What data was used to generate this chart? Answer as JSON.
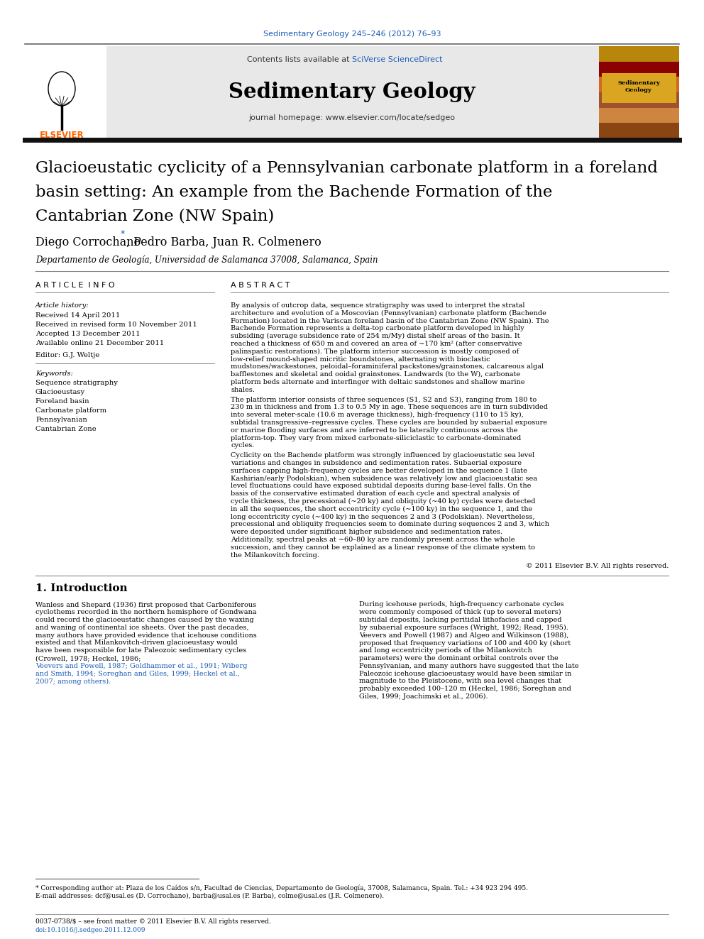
{
  "journal_ref": "Sedimentary Geology 245–246 (2012) 76–93",
  "journal_ref_color": "#1a5bb5",
  "header_bg": "#e8e8e8",
  "contents_prefix": "Contents lists available at ",
  "sciverse_text": "SciVerse ScienceDirect",
  "sciverse_color": "#1a5bb5",
  "journal_name": "Sedimentary Geology",
  "journal_homepage": "journal homepage: www.elsevier.com/locate/sedgeo",
  "title_line1": "Glacioeustatic cyclicity of a Pennsylvanian carbonate platform in a foreland",
  "title_line2": "basin setting: An example from the Bachende Formation of the",
  "title_line3": "Cantabrian Zone (NW Spain)",
  "author_prefix": "Diego Corrochano ",
  "author_suffix": ", Pedro Barba, Juan R. Colmenero",
  "affiliation": "Departamento de Geología, Universidad de Salamanca 37008, Salamanca, Spain",
  "section_article_info": "A R T I C L E  I N F O",
  "section_abstract": "A B S T R A C T",
  "article_history_label": "Article history:",
  "history_items": [
    "Received 14 April 2011",
    "Received in revised form 10 November 2011",
    "Accepted 13 December 2011",
    "Available online 21 December 2011"
  ],
  "editor_label": "Editor: G.J. Weltje",
  "keywords_label": "Keywords:",
  "keywords": [
    "Sequence stratigraphy",
    "Glacioeustasy",
    "Foreland basin",
    "Carbonate platform",
    "Pennsylvanian",
    "Cantabrian Zone"
  ],
  "abstract_para1": "By analysis of outcrop data, sequence stratigraphy was used to interpret the stratal architecture and evolution of a Moscovian (Pennsylvanian) carbonate platform (Bachende Formation) located in the Variscan foreland basin of the Cantabrian Zone (NW Spain). The Bachende Formation represents a delta-top carbonate platform developed in highly subsiding (average subsidence rate of 254 m/My) distal shelf areas of the basin. It reached a thickness of 650 m and covered an area of ~170 km² (after conservative palinspastic restorations). The platform interior succession is mostly composed of low-relief mound-shaped micritic boundstones, alternating with bioclastic mudstones/wackestones, peloidal–foraminiferal packstones/grainstones, calcareous algal bafflestones and skeletal and ooidal grainstones. Landwards (to the W), carbonate platform beds alternate and interfinger with deltaic sandstones and shallow marine shales.",
  "abstract_para2": "The platform interior consists of three sequences (S1, S2 and S3), ranging from 180 to 230 m in thickness and from 1.3 to 0.5 My in age. These sequences are in turn subdivided into several meter-scale (10.6 m average thickness), high-frequency (110 to 15 ky), subtidal transgressive–regressive cycles. These cycles are bounded by subaerial exposure or marine flooding surfaces and are inferred to be laterally continuous across the platform-top. They vary from mixed carbonate-siliciclastic to carbonate-dominated cycles.",
  "abstract_para3": "Cyclicity on the Bachende platform was strongly influenced by glacioeustatic sea level variations and changes in subsidence and sedimentation rates. Subaerial exposure surfaces capping high-frequency cycles are better developed in the sequence 1 (late Kashirian/early Podolskian), when subsidence was relatively low and glacioeustatic sea level fluctuations could have exposed subtidal deposits during base-level falls. On the basis of the conservative estimated duration of each cycle and spectral analysis of cycle thickness, the precessional (~20 ky) and obliquity (~40 ky) cycles were detected in all the sequences, the short eccentricity cycle (~100 ky) in the sequence 1, and the long eccentricity cycle (~400 ky) in the sequences 2 and 3 (Podolskian). Nevertheless, precessional and obliquity frequencies seem to dominate during sequences 2 and 3, which were deposited under significant higher subsidence and sedimentation rates. Additionally, spectral peaks at ~60–80 ky are randomly present across the whole succession, and they cannot be explained as a linear response of the climate system to the Milankovitch forcing.",
  "copyright": "© 2011 Elsevier B.V. All rights reserved.",
  "intro_heading": "1. Introduction",
  "intro_col1_text": "Wanless and Shepard (1936) first proposed that Carboniferous cyclothems recorded in the northern hemisphere of Gondwana could record the glacioeustatic changes caused by the waxing and waning of continental ice sheets. Over the past decades, many authors have provided evidence that icehouse conditions existed and that Milankovitch-driven glacioeustasy would have been responsible for late Paleozoic sedimentary cycles (Crowell, 1978; Heckel, 1986;",
  "intro_col1_refs": "Veevers and Powell, 1987; Goldhammer et al., 1991; Wiberg and Smith, 1994; Soreghan and Giles, 1999; Heckel et al., 2007; among others).",
  "intro_col2_text": "During icehouse periods, high-frequency carbonate cycles were commonly composed of thick (up to several meters) subtidal deposits, lacking peritidal lithofacies and capped by subaerial exposure surfaces (Wright, 1992; Read, 1995). Veevers and Powell (1987) and Algeo and Wilkinson (1988), proposed that frequency variations of 100 and 400 ky (short and long eccentricity periods of the Milankovitch parameters) were the dominant orbital controls over the Pennsylvanian, and many authors have suggested that the late Paleozoic icehouse glacioeustasy would have been similar in magnitude to the Pleistocene, with sea level changes that probably exceeded 100–120 m (Heckel, 1986; Soreghan and Giles, 1999; Joachimski et al., 2006).",
  "footnote1": "* Corresponding author at: Plaza de los Caídos s/n, Facultad de Ciencias, Departamento de Geología, 37008, Salamanca, Spain. Tel.: +34 923 294 495.",
  "footnote2": "E-mail addresses: dcf@usal.es (D. Corrochano), barba@usal.es (P. Barba), colme@usal.es (J.R. Colmenero).",
  "footer_issn": "0037-0738/$ – see front matter © 2011 Elsevier B.V. All rights reserved.",
  "footer_doi": "doi:10.1016/j.sedgeo.2011.12.009",
  "bg_color": "#ffffff",
  "text_color": "#000000",
  "elsevier_orange": "#FF6600",
  "link_color": "#1a5bb5"
}
